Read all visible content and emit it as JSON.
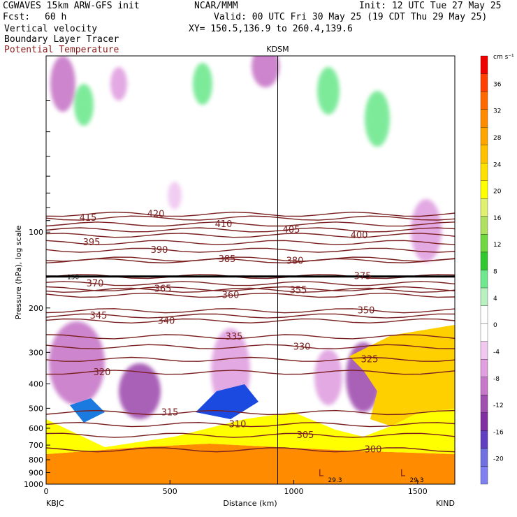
{
  "header": {
    "model": "CGWAVES 15km ARW-GFS init",
    "org": "NCAR/MMM",
    "init": "Init: 12 UTC Tue 27 May 25",
    "fcst_label": "Fcst:",
    "fcst_value": "60 h",
    "valid": "Valid: 00 UTC Fri 30 May 25 (19 CDT Thu 29 May 25)",
    "field1": "Vertical velocity",
    "field2": "Boundary Layer Tracer",
    "field3": "Potential Temperature",
    "xy": "XY= 150.5,136.9 to 260.4,139.6",
    "field3_color": "#8b1a1a"
  },
  "chart_data": {
    "type": "heatmap",
    "xlabel": "Distance (km)",
    "ylabel": "Pressure (hPa), log scale",
    "xlim": [
      0,
      1650
    ],
    "ylim": [
      1000,
      20
    ],
    "x_ticks": [
      "0",
      "500",
      "1000",
      "1500"
    ],
    "x_tick_values": [
      0,
      500,
      1000,
      1500
    ],
    "y_ticks": [
      "100",
      "200",
      "300",
      "400",
      "500",
      "600",
      "700",
      "800",
      "900",
      "1000"
    ],
    "y_tick_values": [
      100,
      200,
      300,
      400,
      500,
      600,
      700,
      800,
      900,
      1000
    ],
    "left_station": "KBJC",
    "right_station": "KIND",
    "marker_station": "KDSM",
    "marker_x": 935,
    "colorbar": {
      "unit": "cm s⁻¹",
      "labels": [
        "36",
        "32",
        "28",
        "24",
        "20",
        "16",
        "12",
        "8",
        "4",
        "0",
        "-4",
        "-8",
        "-12",
        "-16",
        "-20"
      ],
      "colors": [
        "#ee0000",
        "#ff4000",
        "#ff6a00",
        "#ff8c00",
        "#ffa500",
        "#ffc000",
        "#ffe000",
        "#ffff00",
        "#e0f070",
        "#b0e060",
        "#70d840",
        "#30c830",
        "#70e890",
        "#b8f0c0",
        "#ffffff",
        "#ffffff",
        "#f0c8f0",
        "#e0a0e0",
        "#c878c8",
        "#a050b0",
        "#8030a0",
        "#6040c0",
        "#7070e0",
        "#8080f0"
      ]
    },
    "theta_contours": [
      {
        "label": "415",
        "p": 88
      },
      {
        "label": "420",
        "p": 85
      },
      {
        "label": "410",
        "p": 93
      },
      {
        "label": "405",
        "p": 98
      },
      {
        "label": "400",
        "p": 103
      },
      {
        "label": "395",
        "p": 110
      },
      {
        "label": "390",
        "p": 118
      },
      {
        "label": "385",
        "p": 128
      },
      {
        "label": "380",
        "p": 130
      },
      {
        "label": "375",
        "p": 150
      },
      {
        "label": "370",
        "p": 160
      },
      {
        "label": "365",
        "p": 168
      },
      {
        "label": "360",
        "p": 178
      },
      {
        "label": "355",
        "p": 170
      },
      {
        "label": "350",
        "p": 205
      },
      {
        "label": "345",
        "p": 215
      },
      {
        "label": "340",
        "p": 225
      },
      {
        "label": "335",
        "p": 260
      },
      {
        "label": "330",
        "p": 285
      },
      {
        "label": "325",
        "p": 320
      },
      {
        "label": "320",
        "p": 360
      },
      {
        "label": "315",
        "p": 520
      },
      {
        "label": "310",
        "p": 580
      },
      {
        "label": "305",
        "p": 640
      },
      {
        "label": "300",
        "p": 730
      }
    ],
    "tropopause_label": "150",
    "surface_labels": [
      "L",
      "L"
    ],
    "tracer_values": [
      "29.3",
      "29.3"
    ]
  }
}
